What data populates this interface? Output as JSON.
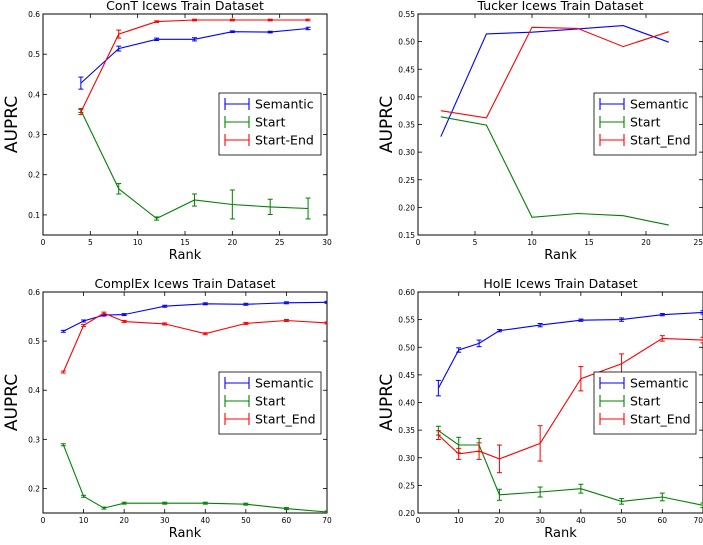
{
  "chart_data": [
    {
      "type": "line",
      "title": "ConT Icews Train Dataset",
      "xlabel": "Rank",
      "ylabel": "AUPRC",
      "xlim": [
        0,
        30
      ],
      "ylim": [
        0.05,
        0.6
      ],
      "xticks": [
        "0",
        "5",
        "10",
        "15",
        "20",
        "25",
        "30"
      ],
      "yticks": [
        "0.1",
        "0.2",
        "0.3",
        "0.4",
        "0.5",
        "0.6"
      ],
      "legend_position": "center-right",
      "series": [
        {
          "name": "Semantic",
          "color": "#0000ff",
          "x": [
            4,
            8,
            12,
            16,
            20,
            24,
            28
          ],
          "y": [
            0.428,
            0.514,
            0.537,
            0.537,
            0.556,
            0.555,
            0.564
          ],
          "err": [
            0.015,
            0.006,
            0.003,
            0.004,
            0.002,
            0.002,
            0.003
          ]
        },
        {
          "name": "Start",
          "color": "#008000",
          "x": [
            4,
            8,
            12,
            16,
            20,
            24,
            28
          ],
          "y": [
            0.36,
            0.165,
            0.091,
            0.137,
            0.126,
            0.12,
            0.116
          ],
          "err": [
            0.005,
            0.013,
            0.004,
            0.015,
            0.036,
            0.019,
            0.026
          ]
        },
        {
          "name": "Start-End",
          "color": "#ff0000",
          "x": [
            4,
            8,
            12,
            16,
            20,
            24,
            28
          ],
          "y": [
            0.356,
            0.55,
            0.581,
            0.585,
            0.585,
            0.585,
            0.585
          ],
          "err": [
            0.006,
            0.01,
            0.002,
            0.002,
            0.002,
            0.002,
            0.002
          ]
        }
      ]
    },
    {
      "type": "line",
      "title": "Tucker Icews Train Dataset",
      "xlabel": "Rank",
      "ylabel": "AUPRC",
      "xlim": [
        0,
        25
      ],
      "ylim": [
        0.15,
        0.55
      ],
      "xticks": [
        "0",
        "5",
        "10",
        "15",
        "20",
        "25"
      ],
      "yticks": [
        "0.15",
        "0.20",
        "0.25",
        "0.30",
        "0.35",
        "0.40",
        "0.45",
        "0.50",
        "0.55"
      ],
      "legend_position": "center-right",
      "series": [
        {
          "name": "Semantic",
          "color": "#0000ff",
          "x": [
            2,
            6,
            10,
            14,
            18,
            22
          ],
          "y": [
            0.328,
            0.514,
            0.517,
            0.523,
            0.529,
            0.499
          ],
          "err": []
        },
        {
          "name": "Start",
          "color": "#008000",
          "x": [
            2,
            6,
            10,
            14,
            18,
            22
          ],
          "y": [
            0.364,
            0.349,
            0.182,
            0.189,
            0.185,
            0.168
          ],
          "err": []
        },
        {
          "name": "Start_End",
          "color": "#ff0000",
          "x": [
            2,
            6,
            10,
            14,
            18,
            22
          ],
          "y": [
            0.375,
            0.362,
            0.526,
            0.524,
            0.491,
            0.518
          ],
          "err": []
        }
      ]
    },
    {
      "type": "line",
      "title": "ComplEx Icews Train Dataset",
      "xlabel": "Rank",
      "ylabel": "AUPRC",
      "xlim": [
        0,
        70
      ],
      "ylim": [
        0.15,
        0.6
      ],
      "xticks": [
        "0",
        "10",
        "20",
        "30",
        "40",
        "50",
        "60",
        "70"
      ],
      "yticks": [
        "0.2",
        "0.3",
        "0.4",
        "0.5",
        "0.6"
      ],
      "legend_position": "center-right",
      "series": [
        {
          "name": "Semantic",
          "color": "#0000ff",
          "x": [
            5,
            10,
            15,
            20,
            30,
            40,
            50,
            60,
            70
          ],
          "y": [
            0.52,
            0.541,
            0.553,
            0.554,
            0.571,
            0.576,
            0.575,
            0.578,
            0.579
          ],
          "err": [
            0.002,
            0.002,
            0.002,
            0.002,
            0.002,
            0.002,
            0.002,
            0.002,
            0.002
          ]
        },
        {
          "name": "Start",
          "color": "#008000",
          "x": [
            5,
            10,
            15,
            20,
            30,
            40,
            50,
            60,
            70
          ],
          "y": [
            0.289,
            0.184,
            0.16,
            0.17,
            0.17,
            0.17,
            0.168,
            0.159,
            0.152
          ],
          "err": [
            0.002,
            0.002,
            0.002,
            0.002,
            0.002,
            0.002,
            0.002,
            0.002,
            0.002
          ]
        },
        {
          "name": "Start_End",
          "color": "#ff0000",
          "x": [
            5,
            10,
            15,
            20,
            30,
            40,
            50,
            60,
            70
          ],
          "y": [
            0.437,
            0.532,
            0.557,
            0.54,
            0.535,
            0.515,
            0.536,
            0.542,
            0.537
          ],
          "err": [
            0.002,
            0.002,
            0.002,
            0.002,
            0.002,
            0.002,
            0.002,
            0.002,
            0.002
          ]
        }
      ]
    },
    {
      "type": "line",
      "title": "HolE Icews Train Dataset",
      "xlabel": "Rank",
      "ylabel": "AUPRC",
      "xlim": [
        0,
        70
      ],
      "ylim": [
        0.2,
        0.6
      ],
      "xticks": [
        "0",
        "10",
        "20",
        "30",
        "40",
        "50",
        "60",
        "70"
      ],
      "yticks": [
        "0.20",
        "0.25",
        "0.30",
        "0.35",
        "0.40",
        "0.45",
        "0.50",
        "0.55",
        "0.60"
      ],
      "legend_position": "center-right",
      "series": [
        {
          "name": "Semantic",
          "color": "#0000ff",
          "x": [
            5,
            10,
            15,
            20,
            30,
            40,
            50,
            60,
            70
          ],
          "y": [
            0.426,
            0.495,
            0.507,
            0.53,
            0.54,
            0.549,
            0.55,
            0.559,
            0.563
          ],
          "err": [
            0.014,
            0.004,
            0.006,
            0.002,
            0.003,
            0.002,
            0.003,
            0.002,
            0.003
          ]
        },
        {
          "name": "Start",
          "color": "#008000",
          "x": [
            5,
            10,
            15,
            20,
            30,
            40,
            50,
            60,
            70
          ],
          "y": [
            0.349,
            0.323,
            0.323,
            0.233,
            0.238,
            0.244,
            0.221,
            0.229,
            0.214
          ],
          "err": [
            0.008,
            0.014,
            0.012,
            0.01,
            0.009,
            0.008,
            0.005,
            0.007,
            0.004
          ]
        },
        {
          "name": "Start_End",
          "color": "#ff0000",
          "x": [
            5,
            10,
            15,
            20,
            30,
            40,
            50,
            60,
            70
          ],
          "y": [
            0.341,
            0.307,
            0.312,
            0.298,
            0.326,
            0.443,
            0.47,
            0.516,
            0.513
          ],
          "err": [
            0.008,
            0.01,
            0.015,
            0.025,
            0.032,
            0.022,
            0.018,
            0.005,
            0.005
          ]
        }
      ]
    }
  ]
}
